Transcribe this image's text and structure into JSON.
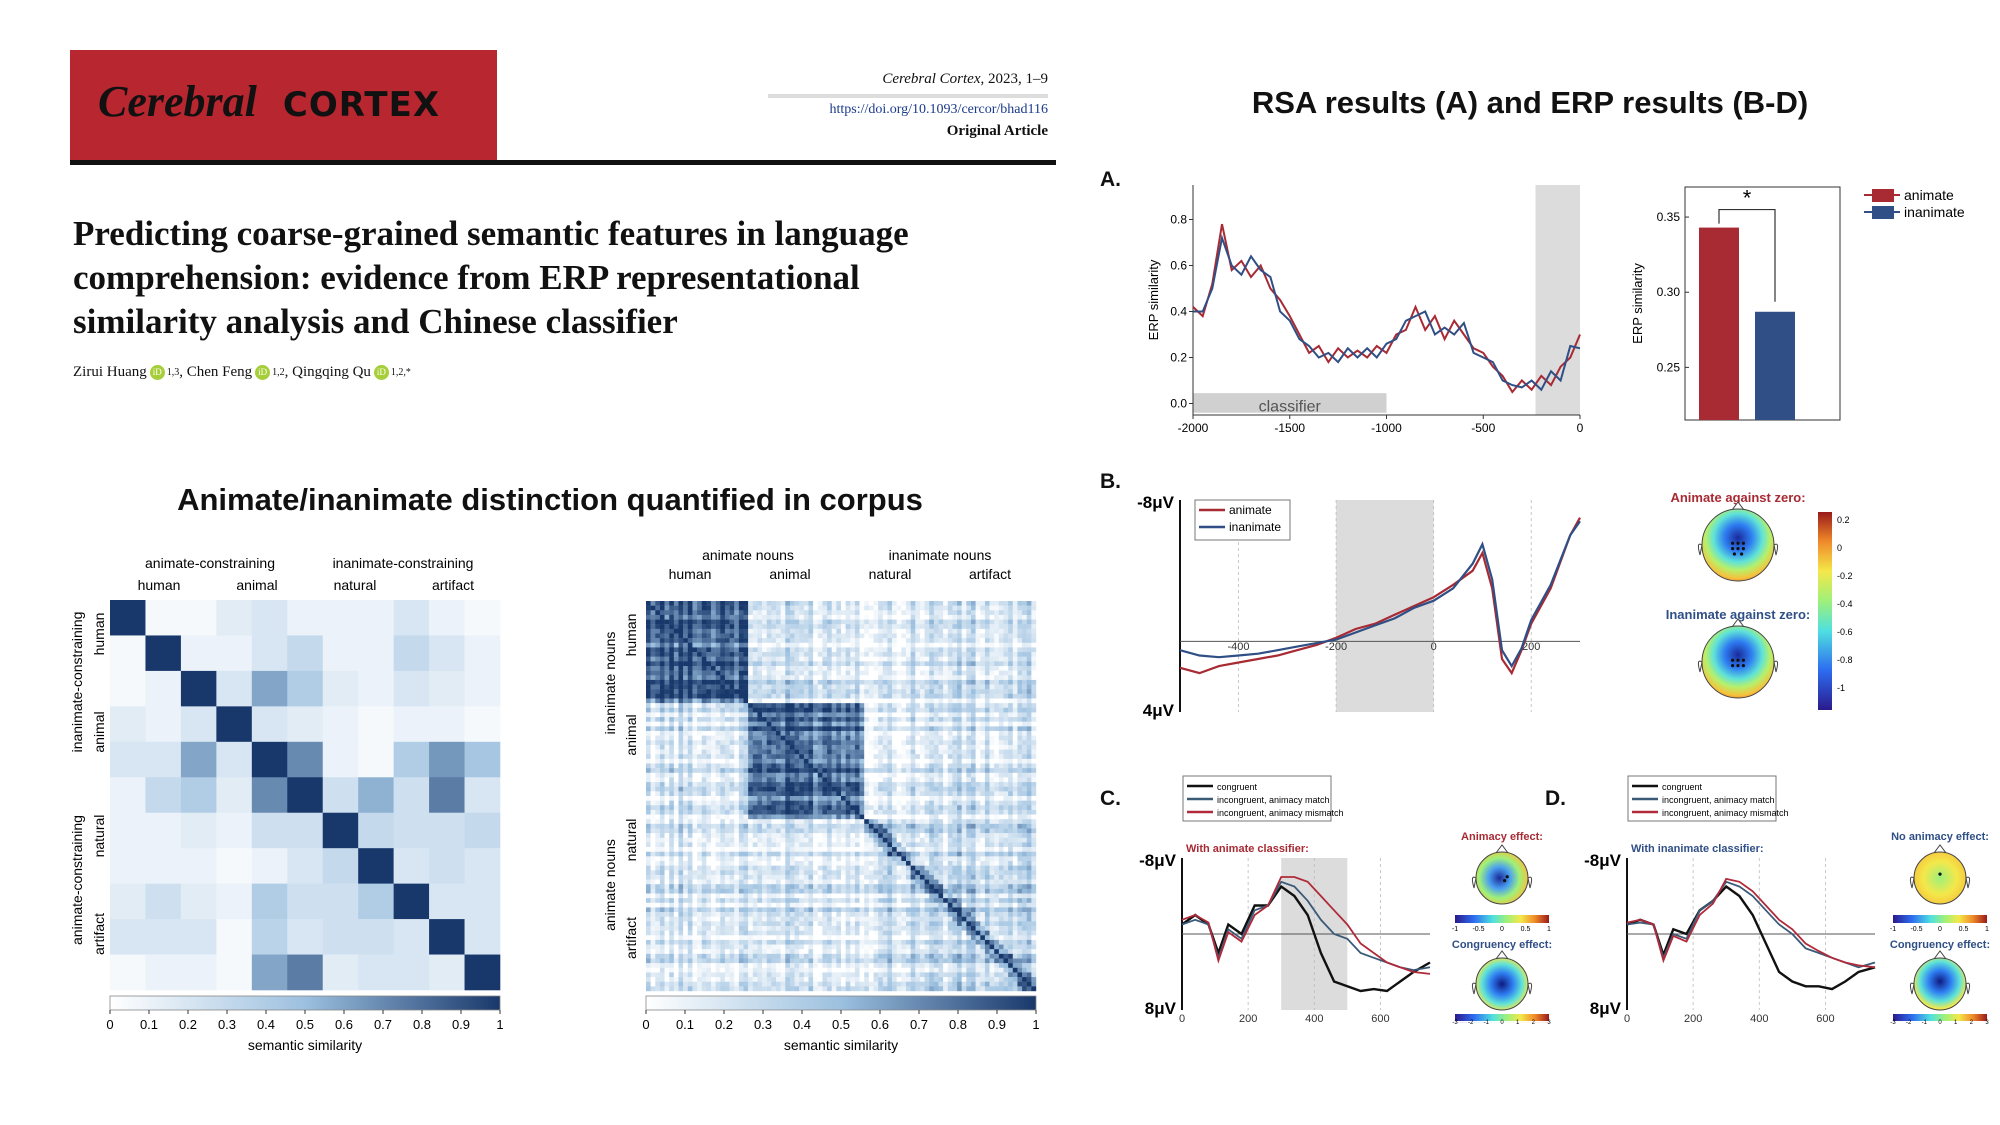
{
  "journal": {
    "name_italic": "Cerebral",
    "name_caps": "CORTEX",
    "citation_journal": "Cerebral Cortex",
    "citation_rest": ", 2023, 1–9",
    "doi": "https://doi.org/10.1093/cercor/bhad116",
    "article_type": "Original Article"
  },
  "paper": {
    "title_lines": [
      "Predicting coarse-grained semantic features in language",
      "comprehension: evidence from ERP representational",
      "similarity analysis and Chinese classifier"
    ],
    "authors": [
      {
        "name": "Zirui Huang",
        "aff": "1,3"
      },
      {
        "name": "Chen Feng",
        "aff": "1,2"
      },
      {
        "name": "Qingqing Qu",
        "aff": "1,2,*"
      }
    ]
  },
  "left_section": {
    "heading": "Animate/inanimate distinction quantified in corpus"
  },
  "right_section": {
    "heading": "RSA results (A) and ERP results (B-D)"
  },
  "panel_labels": {
    "a": "A.",
    "b": "B.",
    "c": "C.",
    "d": "D."
  },
  "colors": {
    "journal_red": "#b8262f",
    "animate": "#a82a33",
    "inanimate": "#2f4f86",
    "congruent": "#111111",
    "incongruent_match": "#3a5a78",
    "incongruent_mismatch": "#b02a3a",
    "matrix_dark": "#18386b"
  },
  "chart_data": [
    {
      "type": "heatmap",
      "id": "corpus_matrix_1",
      "top_group_labels": [
        "animate-constraining",
        "inanimate-constraining"
      ],
      "top_sub_labels": [
        "human",
        "animal",
        "natural",
        "artifact"
      ],
      "left_group_labels": [
        "inanimate-constraining",
        "animate-constraining"
      ],
      "left_sub_labels": [
        "human",
        "animal",
        "natural",
        "artifact"
      ],
      "colorbar_label": "semantic similarity",
      "colorbar_ticks": [
        "0",
        "0.1",
        "0.2",
        "0.3",
        "0.4",
        "0.5",
        "0.6",
        "0.7",
        "0.8",
        "0.9",
        "1"
      ],
      "range": [
        0,
        1
      ],
      "matrix": [
        [
          1,
          0.05,
          0.05,
          0.15,
          0.2,
          0.1,
          0.1,
          0.1,
          0.2,
          0.1,
          0.05
        ],
        [
          0.05,
          1,
          0.1,
          0.1,
          0.2,
          0.3,
          0.1,
          0.1,
          0.3,
          0.2,
          0.1
        ],
        [
          0.05,
          0.1,
          1,
          0.2,
          0.6,
          0.4,
          0.15,
          0.1,
          0.2,
          0.15,
          0.1
        ],
        [
          0.15,
          0.1,
          0.2,
          1,
          0.2,
          0.15,
          0.1,
          0.05,
          0.1,
          0.1,
          0.05
        ],
        [
          0.2,
          0.2,
          0.6,
          0.2,
          1,
          0.7,
          0.1,
          0.05,
          0.4,
          0.65,
          0.45
        ],
        [
          0.1,
          0.3,
          0.4,
          0.15,
          0.7,
          1,
          0.25,
          0.55,
          0.25,
          0.75,
          0.2
        ],
        [
          0.1,
          0.1,
          0.15,
          0.1,
          0.25,
          0.25,
          1,
          0.3,
          0.25,
          0.25,
          0.3
        ],
        [
          0.1,
          0.1,
          0.1,
          0.05,
          0.1,
          0.2,
          0.3,
          1,
          0.2,
          0.25,
          0.2
        ],
        [
          0.15,
          0.25,
          0.15,
          0.1,
          0.4,
          0.25,
          0.25,
          0.4,
          1,
          0.2,
          0.2
        ],
        [
          0.2,
          0.2,
          0.2,
          0.05,
          0.35,
          0.2,
          0.25,
          0.25,
          0.2,
          1,
          0.2
        ],
        [
          0.05,
          0.1,
          0.1,
          0.05,
          0.6,
          0.75,
          0.15,
          0.2,
          0.2,
          0.15,
          1
        ]
      ]
    },
    {
      "type": "heatmap",
      "id": "corpus_matrix_2",
      "top_group_labels": [
        "animate nouns",
        "inanimate nouns"
      ],
      "top_sub_labels": [
        "human",
        "animal",
        "natural",
        "artifact"
      ],
      "left_group_labels": [
        "inanimate nouns",
        "animate nouns"
      ],
      "left_sub_labels": [
        "human",
        "animal",
        "natural",
        "artifact"
      ],
      "colorbar_label": "semantic similarity",
      "colorbar_ticks": [
        "0",
        "0.1",
        "0.2",
        "0.3",
        "0.4",
        "0.5",
        "0.6",
        "0.7",
        "0.8",
        "0.9",
        "1"
      ],
      "range": [
        0,
        1
      ],
      "group_sizes": [
        22,
        25,
        10,
        27
      ]
    },
    {
      "type": "line",
      "id": "rsa_timecourse",
      "ylabel": "ERP similarity",
      "xlim": [
        -2000,
        0
      ],
      "ylim": [
        -0.05,
        0.95
      ],
      "xticks": [
        -2000,
        -1500,
        -1000,
        -500,
        0
      ],
      "yticks": [
        0.0,
        0.2,
        0.4,
        0.6,
        0.8
      ],
      "shaded_window": [
        -230,
        0
      ],
      "classifier_window": [
        -2000,
        -1000
      ],
      "classifier_label": "classifier",
      "series": [
        {
          "name": "animate",
          "x": [
            -2000,
            -1950,
            -1900,
            -1850,
            -1800,
            -1750,
            -1700,
            -1650,
            -1600,
            -1550,
            -1500,
            -1450,
            -1400,
            -1350,
            -1300,
            -1250,
            -1200,
            -1150,
            -1100,
            -1050,
            -1000,
            -950,
            -900,
            -850,
            -800,
            -750,
            -700,
            -650,
            -600,
            -550,
            -500,
            -450,
            -400,
            -350,
            -300,
            -250,
            -200,
            -150,
            -100,
            -50,
            0
          ],
          "y": [
            0.42,
            0.38,
            0.52,
            0.78,
            0.58,
            0.62,
            0.55,
            0.6,
            0.5,
            0.45,
            0.38,
            0.3,
            0.22,
            0.25,
            0.18,
            0.24,
            0.2,
            0.23,
            0.2,
            0.25,
            0.22,
            0.3,
            0.32,
            0.42,
            0.32,
            0.38,
            0.28,
            0.36,
            0.3,
            0.24,
            0.22,
            0.16,
            0.12,
            0.05,
            0.1,
            0.06,
            0.12,
            0.08,
            0.16,
            0.2,
            0.3
          ]
        },
        {
          "name": "inanimate",
          "x": [
            -2000,
            -1950,
            -1900,
            -1850,
            -1800,
            -1750,
            -1700,
            -1650,
            -1600,
            -1550,
            -1500,
            -1450,
            -1400,
            -1350,
            -1300,
            -1250,
            -1200,
            -1150,
            -1100,
            -1050,
            -1000,
            -950,
            -900,
            -850,
            -800,
            -750,
            -700,
            -650,
            -600,
            -550,
            -500,
            -450,
            -400,
            -350,
            -300,
            -250,
            -200,
            -150,
            -100,
            -50,
            0
          ],
          "y": [
            0.4,
            0.4,
            0.5,
            0.72,
            0.6,
            0.56,
            0.64,
            0.58,
            0.55,
            0.4,
            0.36,
            0.28,
            0.25,
            0.2,
            0.22,
            0.18,
            0.24,
            0.2,
            0.24,
            0.2,
            0.26,
            0.28,
            0.36,
            0.38,
            0.4,
            0.3,
            0.33,
            0.3,
            0.35,
            0.22,
            0.2,
            0.18,
            0.1,
            0.08,
            0.07,
            0.1,
            0.06,
            0.14,
            0.1,
            0.25,
            0.24
          ]
        }
      ]
    },
    {
      "type": "bar",
      "id": "rsa_bar",
      "ylabel": "ERP similarity",
      "categories": [
        "animate",
        "inanimate"
      ],
      "values": [
        0.343,
        0.287
      ],
      "ylim": [
        0.215,
        0.37
      ],
      "yticks": [
        0.25,
        0.3,
        0.35
      ],
      "ytick_labels": [
        "0.25",
        "0.30",
        "0.35"
      ],
      "significance": "*",
      "legend": [
        "animate",
        "inanimate"
      ]
    },
    {
      "type": "line",
      "id": "erp_b",
      "y_top_label": "-8μV",
      "y_bottom_label": "4μV",
      "xlim": [
        -520,
        300
      ],
      "xticks": [
        -400,
        -200,
        0,
        200
      ],
      "ylim": [
        -8,
        4
      ],
      "shaded_window": [
        -200,
        0
      ],
      "legend": [
        "animate",
        "inanimate"
      ],
      "series": [
        {
          "name": "animate",
          "x": [
            -520,
            -480,
            -440,
            -400,
            -360,
            -320,
            -280,
            -240,
            -200,
            -160,
            -120,
            -80,
            -40,
            0,
            40,
            80,
            100,
            120,
            140,
            160,
            180,
            200,
            240,
            280,
            300
          ],
          "y": [
            1.5,
            1.8,
            1.4,
            1.2,
            1.0,
            0.8,
            0.5,
            0.2,
            -0.2,
            -0.7,
            -1.0,
            -1.5,
            -2.0,
            -2.5,
            -3.2,
            -4.0,
            -5.0,
            -3.0,
            1.0,
            1.8,
            0.5,
            -1.0,
            -3.0,
            -6.0,
            -7.0
          ]
        },
        {
          "name": "inanimate",
          "x": [
            -520,
            -480,
            -440,
            -400,
            -360,
            -320,
            -280,
            -240,
            -200,
            -160,
            -120,
            -80,
            -40,
            0,
            40,
            80,
            100,
            120,
            140,
            160,
            180,
            200,
            240,
            280,
            300
          ],
          "y": [
            0.5,
            0.8,
            0.9,
            0.8,
            0.7,
            0.5,
            0.3,
            0.1,
            -0.1,
            -0.5,
            -0.9,
            -1.3,
            -1.9,
            -2.3,
            -3.0,
            -4.4,
            -5.5,
            -3.5,
            0.5,
            1.4,
            0.4,
            -1.2,
            -3.2,
            -6.0,
            -6.8
          ]
        }
      ],
      "topomaps": [
        {
          "title": "Animate against zero:"
        },
        {
          "title": "Inanimate against zero:"
        }
      ],
      "colorbar_ticks": [
        "0.2",
        "0",
        "-0.2",
        "-0.4",
        "-0.6",
        "-0.8",
        "-1"
      ]
    },
    {
      "type": "line",
      "id": "erp_c",
      "subtitle": "With animate classifier:",
      "y_top_label": "-8μV",
      "y_bottom_label": "8μV",
      "xlim": [
        0,
        750
      ],
      "xticks": [
        0,
        200,
        400,
        600
      ],
      "ylim": [
        -8,
        8
      ],
      "shaded_window": [
        300,
        500
      ],
      "legend": [
        "congruent",
        "incongruent, animacy match",
        "incongruent, animacy mismatch"
      ],
      "series": [
        {
          "name": "congruent",
          "x": [
            0,
            40,
            80,
            110,
            140,
            180,
            220,
            260,
            300,
            340,
            380,
            420,
            460,
            500,
            540,
            580,
            620,
            660,
            700,
            750
          ],
          "y": [
            -1,
            -2,
            -1,
            2,
            -1,
            0,
            -3,
            -3,
            -5,
            -4,
            -2,
            2,
            5,
            5.5,
            6,
            5.8,
            6,
            5,
            4,
            3
          ]
        },
        {
          "name": "incongruent, animacy match",
          "x": [
            0,
            40,
            80,
            110,
            140,
            180,
            220,
            260,
            300,
            340,
            380,
            420,
            460,
            500,
            540,
            580,
            620,
            660,
            700,
            750
          ],
          "y": [
            -1,
            -1.5,
            -1,
            2.5,
            -0.5,
            0.5,
            -2.5,
            -3,
            -5.5,
            -5,
            -3.5,
            -1.5,
            0,
            0.5,
            2,
            2.5,
            3,
            3.5,
            3.8,
            3.5
          ]
        },
        {
          "name": "incongruent, animacy mismatch",
          "x": [
            0,
            40,
            80,
            110,
            140,
            180,
            220,
            260,
            300,
            340,
            380,
            420,
            460,
            500,
            540,
            580,
            620,
            660,
            700,
            750
          ],
          "y": [
            -1.5,
            -2,
            -1.2,
            2.8,
            -0.2,
            0.8,
            -2,
            -3,
            -6,
            -6,
            -5.5,
            -4,
            -2.5,
            -1,
            1,
            2,
            3,
            3.5,
            4,
            4.2
          ]
        }
      ],
      "topomaps": [
        {
          "title": "Animacy effect:",
          "colorbar_ticks": [
            "-1",
            "-0.5",
            "0",
            "0.5",
            "1"
          ]
        },
        {
          "title": "Congruency effect:",
          "colorbar_ticks": [
            "-3",
            "-2",
            "-1",
            "0",
            "1",
            "2",
            "3"
          ]
        }
      ]
    },
    {
      "type": "line",
      "id": "erp_d",
      "subtitle": "With inanimate classifier:",
      "y_top_label": "-8μV",
      "y_bottom_label": "8μV",
      "xlim": [
        0,
        750
      ],
      "xticks": [
        0,
        200,
        400,
        600
      ],
      "ylim": [
        -8,
        8
      ],
      "legend": [
        "congruent",
        "incongruent, animacy match",
        "incongruent, animacy mismatch"
      ],
      "series": [
        {
          "name": "congruent",
          "x": [
            0,
            40,
            80,
            110,
            140,
            180,
            220,
            260,
            300,
            340,
            380,
            420,
            460,
            500,
            540,
            580,
            620,
            660,
            700,
            750
          ],
          "y": [
            -1,
            -1.5,
            -1,
            2.2,
            -0.5,
            0,
            -2.5,
            -3.5,
            -5,
            -4,
            -2,
            1,
            4,
            5,
            5.5,
            5.5,
            5.8,
            5,
            4,
            3.5
          ]
        },
        {
          "name": "incongruent, animacy match",
          "x": [
            0,
            40,
            80,
            110,
            140,
            180,
            220,
            260,
            300,
            340,
            380,
            420,
            460,
            500,
            540,
            580,
            620,
            660,
            700,
            750
          ],
          "y": [
            -1,
            -1.2,
            -1,
            2.5,
            0,
            0.5,
            -2.5,
            -3.5,
            -5.5,
            -5,
            -4,
            -2.5,
            -1,
            0,
            1.5,
            2,
            2.5,
            3,
            3.5,
            3
          ]
        },
        {
          "name": "incongruent, animacy mismatch",
          "x": [
            0,
            40,
            80,
            110,
            140,
            180,
            220,
            260,
            300,
            340,
            380,
            420,
            460,
            500,
            540,
            580,
            620,
            660,
            700,
            750
          ],
          "y": [
            -1.2,
            -1.5,
            -1,
            2.8,
            0.2,
            0.8,
            -2,
            -3.2,
            -5.8,
            -5.5,
            -4.5,
            -3,
            -1.5,
            -0.5,
            1,
            1.8,
            2.5,
            3,
            3.3,
            3.5
          ]
        }
      ],
      "topomaps": [
        {
          "title": "No animacy effect:",
          "colorbar_ticks": [
            "-1",
            "-0.5",
            "0",
            "0.5",
            "1"
          ]
        },
        {
          "title": "Congruency effect:",
          "colorbar_ticks": [
            "-3",
            "-2",
            "-1",
            "0",
            "1",
            "2",
            "3"
          ]
        }
      ]
    }
  ]
}
